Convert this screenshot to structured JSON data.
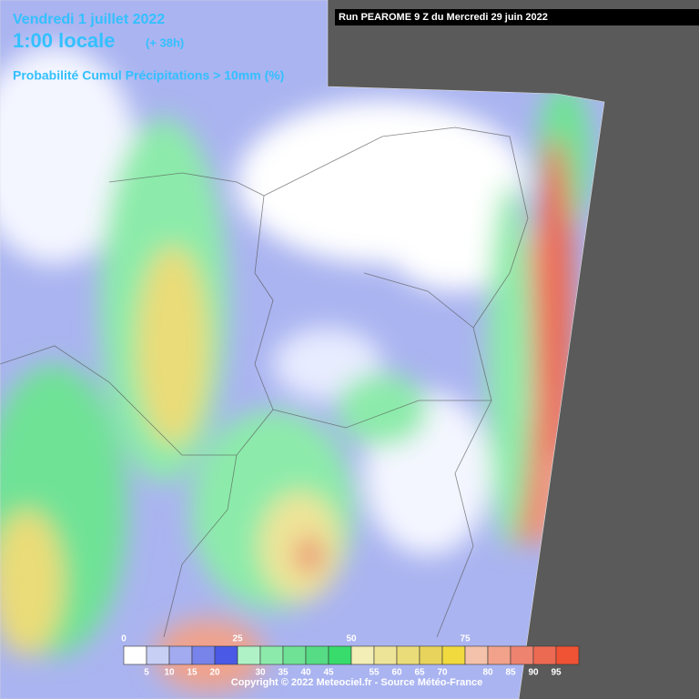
{
  "header": {
    "date": "Vendredi 1 juillet 2022",
    "time": "1:00 locale",
    "lead": "(+ 38h)",
    "run": "Run PEAROME 9 Z du Mercredi 29 juin 2022",
    "subtitle": "Probabilité Cumul Précipitations > 10mm (%)"
  },
  "legend": {
    "colors": [
      "#ffffff",
      "#c8cff5",
      "#a2abf0",
      "#7884ea",
      "#4a5ae6",
      "#aef2c6",
      "#8cebaa",
      "#70e296",
      "#56dc84",
      "#38dc6c",
      "#f2eeb6",
      "#eee498",
      "#eadc78",
      "#e8d45c",
      "#f0da3e",
      "#f4c2aa",
      "#f2a28a",
      "#ee8470",
      "#ec6a52",
      "#f05234"
    ],
    "ticks": [
      0,
      5,
      10,
      15,
      20,
      25,
      30,
      35,
      40,
      45,
      50,
      55,
      60,
      65,
      70,
      75,
      80,
      85,
      90,
      95
    ]
  },
  "footer": {
    "copyright": "Copyright © 2022 Meteociel.fr - Source Météo-France"
  }
}
